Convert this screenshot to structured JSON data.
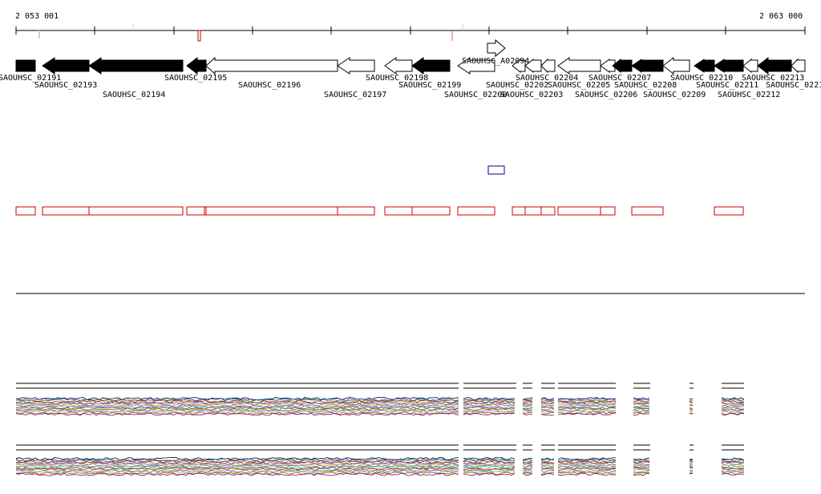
{
  "coords": {
    "start": "2 053 001",
    "end": "2 063 000"
  },
  "genes": [
    {
      "label": "SAOUHSC_02191",
      "strand": "+",
      "filled": true
    },
    {
      "label": "SAOUHSC_02193",
      "strand": "-",
      "filled": true
    },
    {
      "label": "SAOUHSC_02194",
      "strand": "-",
      "filled": true
    },
    {
      "label": "SAOUHSC_02195",
      "strand": "-",
      "filled": true
    },
    {
      "label": "SAOUHSC_02196",
      "strand": "-",
      "filled": false
    },
    {
      "label": "SAOUHSC_02197",
      "strand": "-",
      "filled": false
    },
    {
      "label": "SAOUHSC_02198",
      "strand": "-",
      "filled": false
    },
    {
      "label": "SAOUHSC_02199",
      "strand": "-",
      "filled": true
    },
    {
      "label": "SAOUHSC_02200",
      "strand": "-",
      "filled": false
    },
    {
      "label": "SAOUHSC_A02094",
      "strand": "+",
      "filled": false
    },
    {
      "label": "SAOUHSC_02202",
      "strand": "-",
      "filled": false
    },
    {
      "label": "SAOUHSC_02203",
      "strand": "-",
      "filled": false
    },
    {
      "label": "SAOUHSC_02204",
      "strand": "-",
      "filled": false
    },
    {
      "label": "SAOUHSC_02205",
      "strand": "-",
      "filled": false
    },
    {
      "label": "SAOUHSC_02206",
      "strand": "-",
      "filled": false
    },
    {
      "label": "SAOUHSC_02207",
      "strand": "-",
      "filled": true
    },
    {
      "label": "SAOUHSC_02208",
      "strand": "-",
      "filled": true
    },
    {
      "label": "SAOUHSC_02209",
      "strand": "-",
      "filled": false
    },
    {
      "label": "SAOUHSC_02210",
      "strand": "-",
      "filled": true
    },
    {
      "label": "SAOUHSC_02211",
      "strand": "-",
      "filled": true
    },
    {
      "label": "SAOUHSC_02212",
      "strand": "-",
      "filled": false
    },
    {
      "label": "SAOUHSC_02213",
      "strand": "-",
      "filled": true
    },
    {
      "label": "SAOUHSC_0221",
      "strand": "-",
      "filled": false
    }
  ],
  "colors": {
    "filled_gene": "#000000",
    "open_gene": "#ffffff",
    "red_track": "#cc0000",
    "blue_track": "#000099",
    "ruler": "#000000"
  }
}
